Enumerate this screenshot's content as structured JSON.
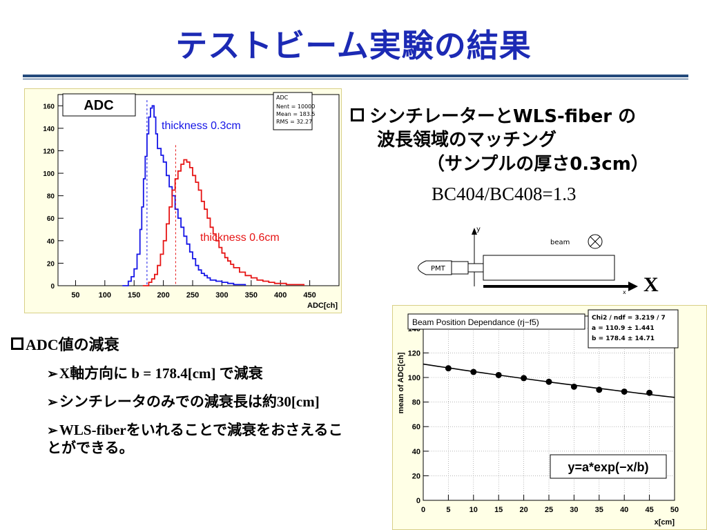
{
  "title": "テストビーム実験の結果",
  "right_bullet": {
    "line1": "シンチレーターとWLS-fiber の",
    "line2": "波長領域のマッチング",
    "line3": "（サンプルの厚さ0.3cm）",
    "ratio": "BC404/BC408=1.3"
  },
  "left_bullet": {
    "head": "ADC値の減衰",
    "items": [
      "X軸方向に b = 178.4[cm] で減衰",
      "シンチレータのみでの減衰長は約30[cm]",
      "WLS-fiberをいれることで減衰をおさえることができる。"
    ]
  },
  "schematic": {
    "y_label": "y",
    "beam_label": "beam",
    "pmt_label": "PMT",
    "x_small": "x",
    "x_big": "X"
  },
  "chart_data": [
    {
      "type": "histogram",
      "title": "ADC",
      "xlabel": "ADC[ch]",
      "ylabel": "",
      "xlim": [
        20,
        500
      ],
      "ylim": [
        0,
        170
      ],
      "x_ticks": [
        50,
        100,
        150,
        200,
        250,
        300,
        350,
        400,
        450
      ],
      "y_ticks": [
        0,
        20,
        40,
        60,
        80,
        100,
        120,
        140,
        160
      ],
      "stats": {
        "name": "ADC",
        "lines": [
          "Nent = 10000",
          "Mean  =  183.5",
          "RMS   =  32.27"
        ]
      },
      "series": [
        {
          "name": "thickness  0.3cm",
          "color": "#1414e6",
          "mean_marker": 172,
          "points": [
            [
              130,
              0
            ],
            [
              140,
              4
            ],
            [
              145,
              8
            ],
            [
              150,
              15
            ],
            [
              155,
              28
            ],
            [
              160,
              50
            ],
            [
              163,
              70
            ],
            [
              166,
              95
            ],
            [
              169,
              115
            ],
            [
              172,
              135
            ],
            [
              175,
              150
            ],
            [
              178,
              158
            ],
            [
              181,
              160
            ],
            [
              184,
              150
            ],
            [
              187,
              135
            ],
            [
              190,
              122
            ],
            [
              193,
              122
            ],
            [
              196,
              116
            ],
            [
              200,
              110
            ],
            [
              205,
              98
            ],
            [
              210,
              88
            ],
            [
              215,
              80
            ],
            [
              220,
              68
            ],
            [
              225,
              60
            ],
            [
              230,
              52
            ],
            [
              235,
              44
            ],
            [
              240,
              37
            ],
            [
              245,
              30
            ],
            [
              250,
              24
            ],
            [
              255,
              18
            ],
            [
              260,
              14
            ],
            [
              265,
              11
            ],
            [
              270,
              9
            ],
            [
              275,
              7
            ],
            [
              280,
              5
            ],
            [
              290,
              4
            ],
            [
              300,
              3
            ],
            [
              310,
              2
            ],
            [
              320,
              1
            ],
            [
              340,
              0
            ]
          ]
        },
        {
          "name": "thickness 0.6cm",
          "color": "#e61414",
          "mean_marker": 221,
          "points": [
            [
              165,
              0
            ],
            [
              175,
              3
            ],
            [
              180,
              6
            ],
            [
              185,
              10
            ],
            [
              190,
              18
            ],
            [
              195,
              28
            ],
            [
              200,
              40
            ],
            [
              205,
              55
            ],
            [
              210,
              70
            ],
            [
              215,
              85
            ],
            [
              220,
              95
            ],
            [
              225,
              102
            ],
            [
              230,
              108
            ],
            [
              235,
              112
            ],
            [
              240,
              110
            ],
            [
              245,
              105
            ],
            [
              250,
              98
            ],
            [
              255,
              92
            ],
            [
              260,
              85
            ],
            [
              265,
              75
            ],
            [
              270,
              68
            ],
            [
              275,
              60
            ],
            [
              280,
              52
            ],
            [
              285,
              46
            ],
            [
              290,
              40
            ],
            [
              295,
              34
            ],
            [
              300,
              29
            ],
            [
              305,
              25
            ],
            [
              310,
              22
            ],
            [
              315,
              19
            ],
            [
              320,
              16
            ],
            [
              330,
              12
            ],
            [
              340,
              9
            ],
            [
              350,
              7
            ],
            [
              360,
              5
            ],
            [
              370,
              4
            ],
            [
              380,
              3
            ],
            [
              390,
              2
            ],
            [
              400,
              2
            ],
            [
              410,
              1
            ],
            [
              420,
              1
            ],
            [
              440,
              0
            ]
          ]
        }
      ]
    },
    {
      "type": "scatter",
      "title": "Beam Position Dependance (rj−f5)",
      "xlabel": "x[cm]",
      "ylabel": "mean of ADC[ch]",
      "xlim": [
        0,
        50
      ],
      "ylim": [
        0,
        150
      ],
      "x_ticks": [
        0,
        5,
        10,
        15,
        20,
        25,
        30,
        35,
        40,
        45,
        50
      ],
      "y_ticks": [
        0,
        20,
        40,
        60,
        80,
        100,
        120,
        140
      ],
      "stats": {
        "lines": [
          "Chi2 / ndf = 3.219 / 7",
          "a        = 110.9    ±  1.441",
          "b        = 178.4    ±  14.71"
        ]
      },
      "formula": "y=a*exp(−x/b)",
      "fit": {
        "a": 110.9,
        "b": 178.4
      },
      "x": [
        5,
        10,
        15,
        20,
        25,
        30,
        35,
        40,
        45
      ],
      "y": [
        107.5,
        104.5,
        102,
        99.5,
        96.5,
        92.5,
        90,
        88.5,
        87.5
      ]
    }
  ]
}
